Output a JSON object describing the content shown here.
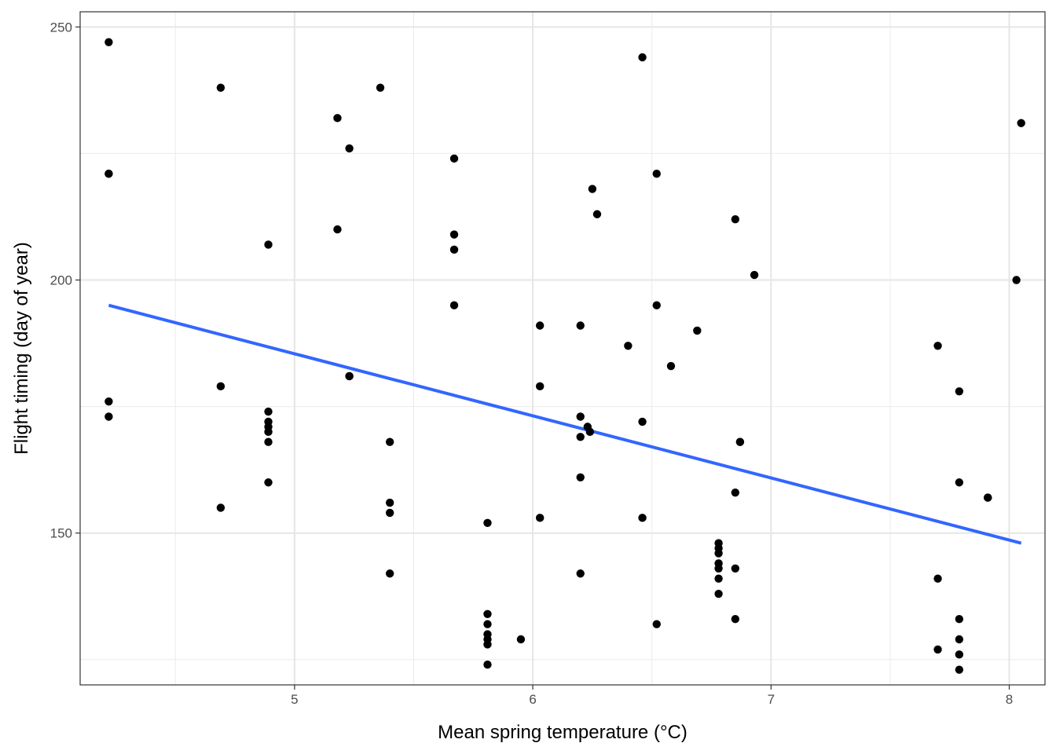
{
  "chart_data": {
    "type": "scatter",
    "title": "",
    "xlabel": "Mean spring temperature (°C)",
    "ylabel": "Flight timing (day of year)",
    "xlim": [
      4.1,
      8.15
    ],
    "ylim": [
      120,
      253
    ],
    "x_ticks": [
      5,
      6,
      7,
      8
    ],
    "x_tick_labels": [
      "5",
      "6",
      "7",
      "8"
    ],
    "y_ticks": [
      150,
      200,
      250
    ],
    "y_tick_labels": [
      "150",
      "200",
      "250"
    ],
    "x_minor_ticks": [
      4.5,
      5.5,
      6.5,
      7.5
    ],
    "y_minor_ticks": [
      125,
      175,
      225
    ],
    "grid": true,
    "point_color": "#000000",
    "trend_color": "#3366ff",
    "trend_line": {
      "x": [
        4.22,
        8.05
      ],
      "y": [
        195,
        148
      ]
    },
    "points": [
      [
        4.22,
        247
      ],
      [
        4.22,
        221
      ],
      [
        4.22,
        221
      ],
      [
        4.22,
        176
      ],
      [
        4.22,
        173
      ],
      [
        4.69,
        238
      ],
      [
        4.69,
        179
      ],
      [
        4.69,
        155
      ],
      [
        4.89,
        207
      ],
      [
        4.89,
        174
      ],
      [
        4.89,
        172
      ],
      [
        4.89,
        171
      ],
      [
        4.89,
        170
      ],
      [
        4.89,
        168
      ],
      [
        4.89,
        160
      ],
      [
        5.18,
        232
      ],
      [
        5.18,
        210
      ],
      [
        5.23,
        226
      ],
      [
        5.23,
        181
      ],
      [
        5.23,
        181
      ],
      [
        5.36,
        238
      ],
      [
        5.4,
        168
      ],
      [
        5.4,
        156
      ],
      [
        5.4,
        154
      ],
      [
        5.4,
        142
      ],
      [
        5.67,
        224
      ],
      [
        5.67,
        209
      ],
      [
        5.67,
        206
      ],
      [
        5.67,
        195
      ],
      [
        5.81,
        152
      ],
      [
        5.81,
        134
      ],
      [
        5.81,
        132
      ],
      [
        5.81,
        130
      ],
      [
        5.81,
        129
      ],
      [
        5.81,
        128
      ],
      [
        5.81,
        124
      ],
      [
        5.95,
        129
      ],
      [
        6.03,
        191
      ],
      [
        6.03,
        179
      ],
      [
        6.03,
        153
      ],
      [
        6.2,
        191
      ],
      [
        6.2,
        173
      ],
      [
        6.2,
        169
      ],
      [
        6.2,
        161
      ],
      [
        6.2,
        142
      ],
      [
        6.23,
        171
      ],
      [
        6.24,
        170
      ],
      [
        6.25,
        218
      ],
      [
        6.27,
        213
      ],
      [
        6.4,
        187
      ],
      [
        6.46,
        244
      ],
      [
        6.46,
        172
      ],
      [
        6.46,
        153
      ],
      [
        6.52,
        221
      ],
      [
        6.52,
        195
      ],
      [
        6.52,
        132
      ],
      [
        6.58,
        183
      ],
      [
        6.69,
        190
      ],
      [
        6.78,
        148
      ],
      [
        6.78,
        147
      ],
      [
        6.78,
        146
      ],
      [
        6.78,
        144
      ],
      [
        6.78,
        143
      ],
      [
        6.78,
        141
      ],
      [
        6.78,
        138
      ],
      [
        6.85,
        212
      ],
      [
        6.85,
        158
      ],
      [
        6.85,
        143
      ],
      [
        6.85,
        133
      ],
      [
        6.87,
        168
      ],
      [
        6.87,
        168
      ],
      [
        6.93,
        201
      ],
      [
        7.7,
        187
      ],
      [
        7.7,
        141
      ],
      [
        7.7,
        127
      ],
      [
        7.79,
        178
      ],
      [
        7.79,
        160
      ],
      [
        7.79,
        133
      ],
      [
        7.79,
        129
      ],
      [
        7.79,
        126
      ],
      [
        7.79,
        123
      ],
      [
        7.91,
        157
      ],
      [
        7.91,
        157
      ],
      [
        8.03,
        200
      ],
      [
        8.05,
        231
      ]
    ]
  }
}
